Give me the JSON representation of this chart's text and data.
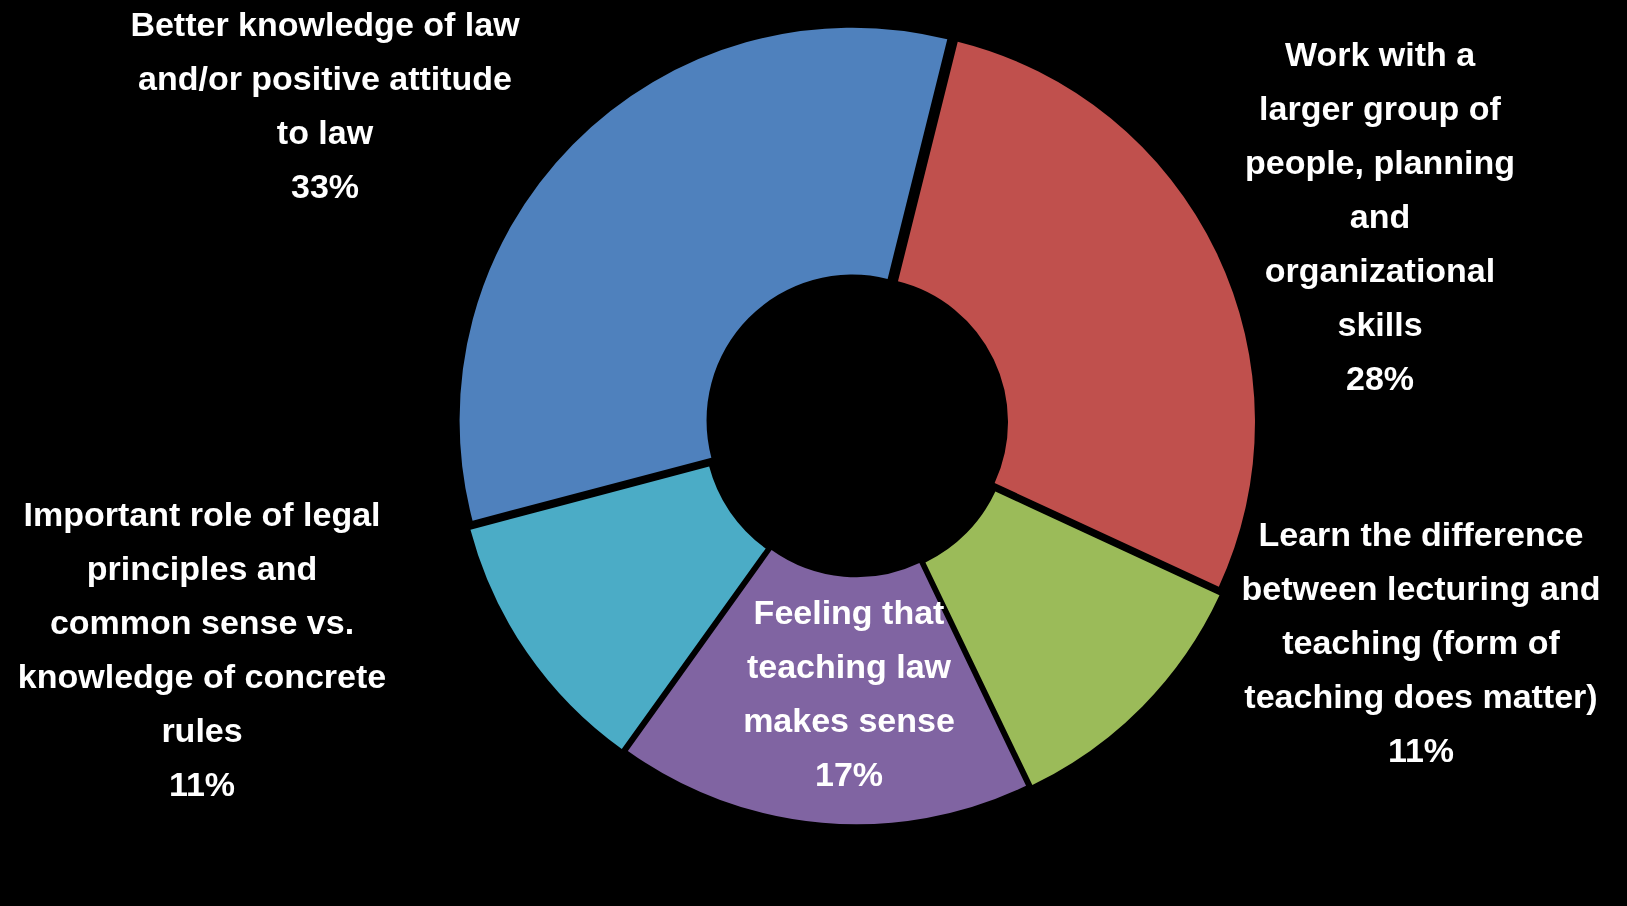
{
  "chart_data": {
    "type": "donut",
    "categories": [
      "Work with a larger group of people, planning and organizational skills",
      "Learn the difference between lecturing and teaching (form of teaching does matter)",
      "Feeling that teaching law makes sense",
      "Important role of legal principles and common sense vs. knowledge of concrete rules",
      "Better knowledge of law and/or positive attitude to law"
    ],
    "values": [
      28,
      11,
      17,
      11,
      33
    ],
    "value_labels": [
      "28%",
      "11%",
      "17%",
      "11%",
      "33%"
    ],
    "colors": [
      "#c0504d",
      "#9bbb59",
      "#8064a2",
      "#4bacc6",
      "#4f81bd"
    ],
    "legend": false
  }
}
